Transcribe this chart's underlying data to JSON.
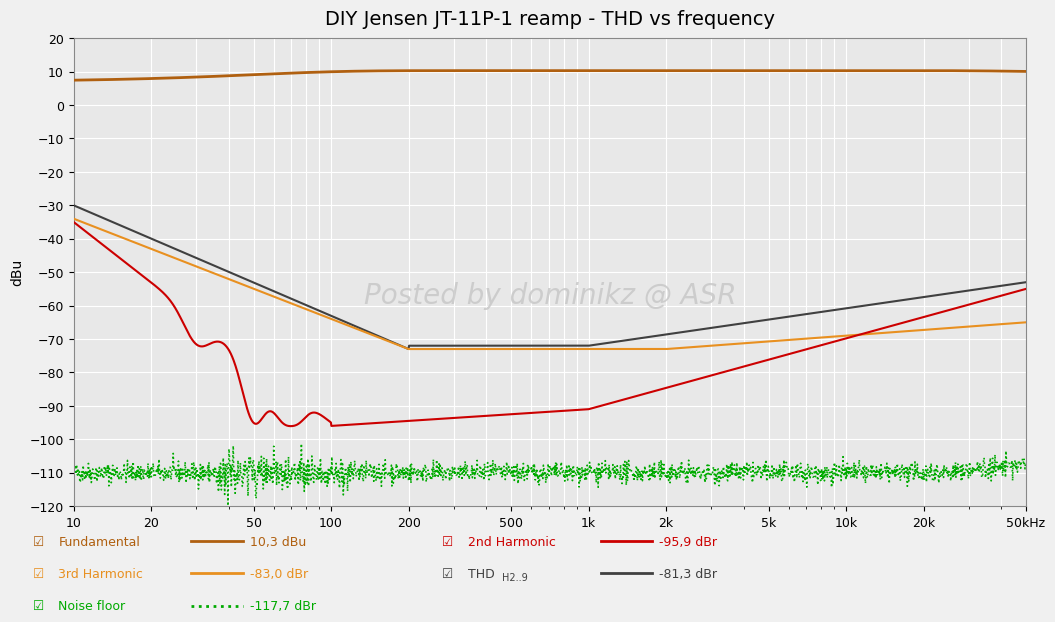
{
  "title": "DIY Jensen JT-11P-1 reamp - THD vs frequency",
  "ylabel": "dBu",
  "xmin": 10,
  "xmax": 50000,
  "ymin": -120,
  "ymax": 20,
  "yticks": [
    20,
    10,
    0,
    -10,
    -20,
    -30,
    -40,
    -50,
    -60,
    -70,
    -80,
    -90,
    -100,
    -110,
    -120
  ],
  "xticks_major": [
    10,
    20,
    50,
    100,
    200,
    500,
    1000,
    2000,
    5000,
    10000,
    20000,
    50000
  ],
  "xtick_labels": [
    "10",
    "20",
    "50",
    "100",
    "200",
    "500",
    "1k",
    "2k",
    "5k",
    "10k",
    "20k",
    "50kHz"
  ],
  "bg_color": "#e8e8e8",
  "grid_color": "#ffffff",
  "watermark": "Posted by dominikz @ ASR",
  "fundamental_color": "#b06010",
  "second_harmonic_color": "#cc0000",
  "third_harmonic_color": "#e89020",
  "thd_color": "#404040",
  "noise_color": "#00aa00",
  "fig_bg": "#f0f0f0"
}
